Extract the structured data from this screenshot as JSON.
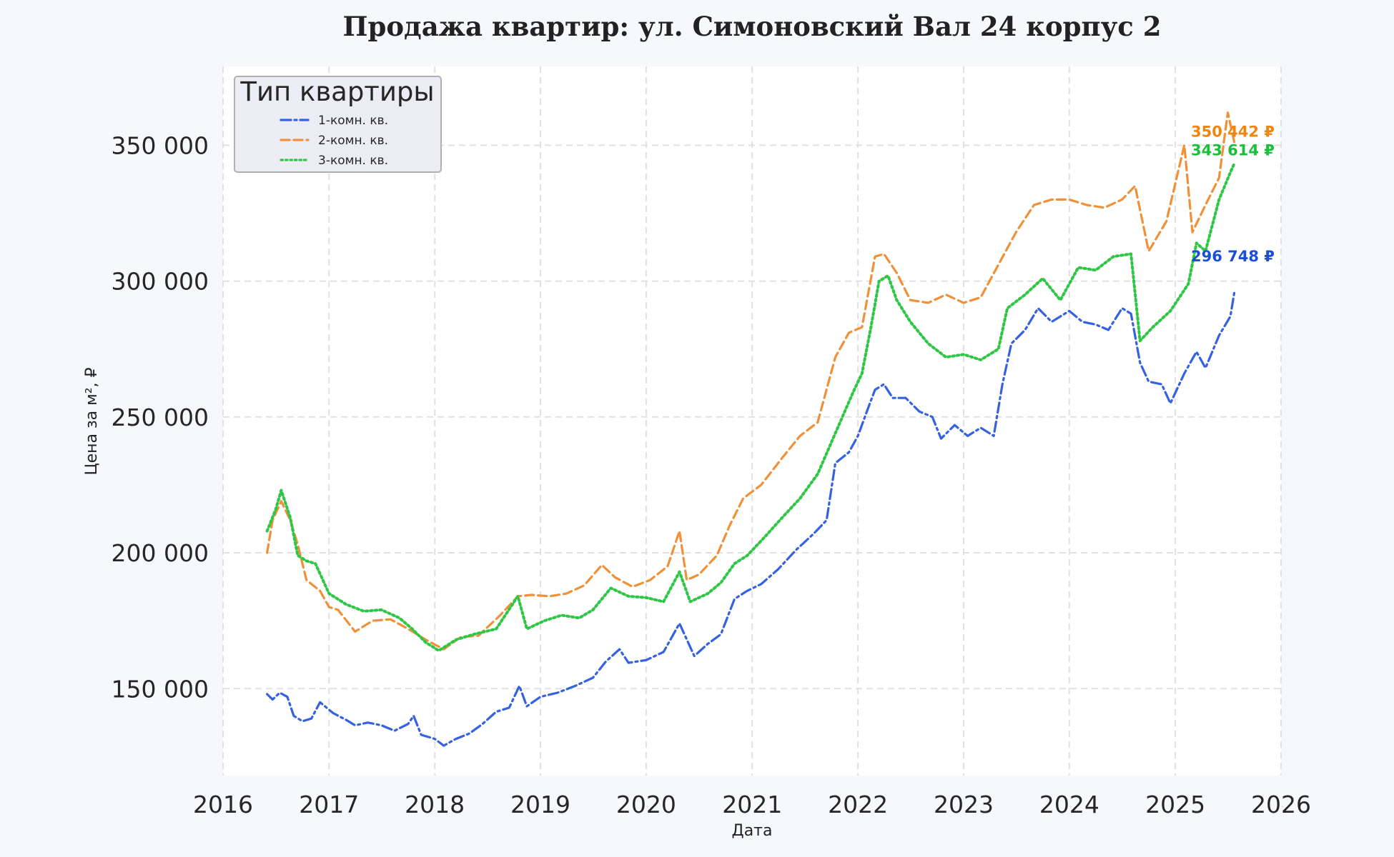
{
  "chart_data": {
    "type": "line",
    "title": "Продажа квартир: ул. Симоновский Вал 24 корпус 2",
    "xlabel": "Дата",
    "ylabel": "Цена за м², ₽",
    "xlim": [
      "2016-01-01",
      "2026-01-01"
    ],
    "ylim": [
      118000,
      379000
    ],
    "x_ticks": [
      "2016",
      "2017",
      "2018",
      "2019",
      "2020",
      "2021",
      "2022",
      "2023",
      "2024",
      "2025",
      "2026"
    ],
    "y_ticks": [
      150000,
      200000,
      250000,
      300000,
      350000
    ],
    "y_tick_labels": [
      "150 000",
      "200 000",
      "250 000",
      "300 000",
      "350 000"
    ],
    "grid": true,
    "legend": {
      "title": "Тип квартиры",
      "position": "top-left"
    },
    "series": [
      {
        "name": "1-комн. кв.",
        "color": "#3462e0",
        "style": "dash-dot",
        "end_label": "296 748 ₽",
        "end_label_color": "#1a4fd6",
        "points": [
          [
            "2016-06-01",
            148000
          ],
          [
            "2016-06-20",
            146000
          ],
          [
            "2016-07-15",
            148500
          ],
          [
            "2016-08-10",
            147000
          ],
          [
            "2016-09-01",
            140000
          ],
          [
            "2016-10-01",
            138000
          ],
          [
            "2016-11-01",
            139000
          ],
          [
            "2016-12-01",
            145000
          ],
          [
            "2017-01-15",
            141000
          ],
          [
            "2017-03-01",
            138500
          ],
          [
            "2017-04-01",
            136500
          ],
          [
            "2017-05-15",
            137500
          ],
          [
            "2017-07-01",
            136500
          ],
          [
            "2017-08-15",
            134500
          ],
          [
            "2017-10-01",
            137000
          ],
          [
            "2017-10-20",
            140000
          ],
          [
            "2017-11-15",
            133000
          ],
          [
            "2018-01-01",
            131500
          ],
          [
            "2018-02-01",
            129000
          ],
          [
            "2018-03-15",
            131500
          ],
          [
            "2018-05-01",
            133500
          ],
          [
            "2018-06-15",
            137000
          ],
          [
            "2018-08-01",
            141500
          ],
          [
            "2018-09-15",
            143000
          ],
          [
            "2018-10-20",
            151000
          ],
          [
            "2018-11-15",
            143500
          ],
          [
            "2019-01-01",
            147000
          ],
          [
            "2019-03-01",
            148500
          ],
          [
            "2019-05-01",
            151000
          ],
          [
            "2019-07-01",
            154000
          ],
          [
            "2019-08-15",
            160000
          ],
          [
            "2019-10-01",
            164500
          ],
          [
            "2019-11-01",
            159500
          ],
          [
            "2020-01-01",
            160500
          ],
          [
            "2020-03-01",
            163500
          ],
          [
            "2020-04-25",
            174000
          ],
          [
            "2020-06-15",
            162000
          ],
          [
            "2020-08-01",
            166500
          ],
          [
            "2020-09-15",
            170000
          ],
          [
            "2020-11-01",
            183000
          ],
          [
            "2020-12-15",
            186000
          ],
          [
            "2021-02-01",
            188500
          ],
          [
            "2021-04-01",
            194000
          ],
          [
            "2021-06-01",
            201000
          ],
          [
            "2021-08-01",
            207000
          ],
          [
            "2021-09-15",
            212000
          ],
          [
            "2021-10-15",
            233000
          ],
          [
            "2021-12-01",
            237000
          ],
          [
            "2022-01-01",
            243000
          ],
          [
            "2022-02-01",
            252000
          ],
          [
            "2022-03-01",
            260000
          ],
          [
            "2022-04-01",
            262000
          ],
          [
            "2022-05-01",
            257000
          ],
          [
            "2022-06-15",
            257000
          ],
          [
            "2022-08-01",
            252000
          ],
          [
            "2022-09-15",
            250000
          ],
          [
            "2022-10-15",
            242000
          ],
          [
            "2022-12-01",
            247000
          ],
          [
            "2023-01-15",
            243000
          ],
          [
            "2023-03-01",
            246000
          ],
          [
            "2023-04-15",
            243000
          ],
          [
            "2023-05-15",
            262000
          ],
          [
            "2023-06-15",
            277000
          ],
          [
            "2023-08-01",
            282000
          ],
          [
            "2023-09-15",
            290000
          ],
          [
            "2023-11-01",
            285000
          ],
          [
            "2024-01-01",
            289000
          ],
          [
            "2024-02-15",
            285000
          ],
          [
            "2024-04-01",
            284000
          ],
          [
            "2024-05-15",
            282000
          ],
          [
            "2024-07-01",
            290000
          ],
          [
            "2024-08-01",
            288000
          ],
          [
            "2024-09-01",
            270000
          ],
          [
            "2024-10-01",
            263000
          ],
          [
            "2024-11-15",
            262000
          ],
          [
            "2024-12-15",
            255000
          ],
          [
            "2025-02-01",
            266000
          ],
          [
            "2025-03-15",
            274000
          ],
          [
            "2025-04-15",
            268000
          ],
          [
            "2025-06-01",
            280000
          ],
          [
            "2025-07-10",
            287000
          ],
          [
            "2025-07-25",
            296748
          ]
        ]
      },
      {
        "name": "2-комн. кв.",
        "color": "#f0913a",
        "style": "dashed",
        "end_label": "350 442 ₽",
        "end_label_color": "#f0860f",
        "points": [
          [
            "2016-06-01",
            200000
          ],
          [
            "2016-06-20",
            212000
          ],
          [
            "2016-07-20",
            219000
          ],
          [
            "2016-08-20",
            212000
          ],
          [
            "2016-09-15",
            203000
          ],
          [
            "2016-10-15",
            190000
          ],
          [
            "2016-12-01",
            186000
          ],
          [
            "2017-01-01",
            180000
          ],
          [
            "2017-02-01",
            179000
          ],
          [
            "2017-04-01",
            171000
          ],
          [
            "2017-06-01",
            175000
          ],
          [
            "2017-08-01",
            175500
          ],
          [
            "2017-10-01",
            172000
          ],
          [
            "2017-12-01",
            168000
          ],
          [
            "2018-02-01",
            164500
          ],
          [
            "2018-04-01",
            169000
          ],
          [
            "2018-06-01",
            169500
          ],
          [
            "2018-08-15",
            177000
          ],
          [
            "2018-10-15",
            184000
          ],
          [
            "2018-12-01",
            184500
          ],
          [
            "2019-02-01",
            184000
          ],
          [
            "2019-04-01",
            185000
          ],
          [
            "2019-06-01",
            188000
          ],
          [
            "2019-08-01",
            195500
          ],
          [
            "2019-09-15",
            191000
          ],
          [
            "2019-11-15",
            187500
          ],
          [
            "2020-01-15",
            190000
          ],
          [
            "2020-03-15",
            195000
          ],
          [
            "2020-04-25",
            208000
          ],
          [
            "2020-05-20",
            190000
          ],
          [
            "2020-07-01",
            192000
          ],
          [
            "2020-09-01",
            199000
          ],
          [
            "2020-10-15",
            210000
          ],
          [
            "2020-12-01",
            220000
          ],
          [
            "2021-02-01",
            225000
          ],
          [
            "2021-04-15",
            235000
          ],
          [
            "2021-06-15",
            243000
          ],
          [
            "2021-08-15",
            248000
          ],
          [
            "2021-10-15",
            272000
          ],
          [
            "2021-12-01",
            281000
          ],
          [
            "2022-01-15",
            283000
          ],
          [
            "2022-03-01",
            309000
          ],
          [
            "2022-04-01",
            310000
          ],
          [
            "2022-05-15",
            303000
          ],
          [
            "2022-07-01",
            293000
          ],
          [
            "2022-09-01",
            292000
          ],
          [
            "2022-11-01",
            295000
          ],
          [
            "2023-01-01",
            292000
          ],
          [
            "2023-03-01",
            294000
          ],
          [
            "2023-05-01",
            306000
          ],
          [
            "2023-07-01",
            318000
          ],
          [
            "2023-09-01",
            328000
          ],
          [
            "2023-11-01",
            330000
          ],
          [
            "2024-01-01",
            330000
          ],
          [
            "2024-03-01",
            328000
          ],
          [
            "2024-05-01",
            327000
          ],
          [
            "2024-07-01",
            330000
          ],
          [
            "2024-08-15",
            335000
          ],
          [
            "2024-10-01",
            311000
          ],
          [
            "2024-12-01",
            322000
          ],
          [
            "2025-02-01",
            350000
          ],
          [
            "2025-03-01",
            318000
          ],
          [
            "2025-04-15",
            328000
          ],
          [
            "2025-06-01",
            338000
          ],
          [
            "2025-07-01",
            362000
          ],
          [
            "2025-07-25",
            350442
          ]
        ]
      },
      {
        "name": "3-комн. кв.",
        "color": "#2ec645",
        "style": "dotted",
        "end_label": "343 614 ₽",
        "end_label_color": "#1bbf3c",
        "points": [
          [
            "2016-06-01",
            208000
          ],
          [
            "2016-07-01",
            216000
          ],
          [
            "2016-07-20",
            223000
          ],
          [
            "2016-08-20",
            213000
          ],
          [
            "2016-09-15",
            199000
          ],
          [
            "2016-10-15",
            197000
          ],
          [
            "2016-11-15",
            196000
          ],
          [
            "2017-01-01",
            185000
          ],
          [
            "2017-03-01",
            181000
          ],
          [
            "2017-05-01",
            178500
          ],
          [
            "2017-07-01",
            179000
          ],
          [
            "2017-09-01",
            176000
          ],
          [
            "2017-10-15",
            172000
          ],
          [
            "2017-12-01",
            167000
          ],
          [
            "2018-01-15",
            164000
          ],
          [
            "2018-03-15",
            168000
          ],
          [
            "2018-05-15",
            170000
          ],
          [
            "2018-08-01",
            172000
          ],
          [
            "2018-10-15",
            184000
          ],
          [
            "2018-11-15",
            172000
          ],
          [
            "2019-01-15",
            175000
          ],
          [
            "2019-03-15",
            177000
          ],
          [
            "2019-05-15",
            176000
          ],
          [
            "2019-07-01",
            179000
          ],
          [
            "2019-09-01",
            187000
          ],
          [
            "2019-11-01",
            184000
          ],
          [
            "2020-01-01",
            183500
          ],
          [
            "2020-03-01",
            182000
          ],
          [
            "2020-04-25",
            193000
          ],
          [
            "2020-06-01",
            182000
          ],
          [
            "2020-08-01",
            185000
          ],
          [
            "2020-09-15",
            189000
          ],
          [
            "2020-11-01",
            196000
          ],
          [
            "2020-12-15",
            199000
          ],
          [
            "2021-02-15",
            206000
          ],
          [
            "2021-04-15",
            213000
          ],
          [
            "2021-06-15",
            220000
          ],
          [
            "2021-08-15",
            229000
          ],
          [
            "2021-10-15",
            244000
          ],
          [
            "2021-12-15",
            259000
          ],
          [
            "2022-01-15",
            266000
          ],
          [
            "2022-02-15",
            283000
          ],
          [
            "2022-03-15",
            300000
          ],
          [
            "2022-04-15",
            302000
          ],
          [
            "2022-05-15",
            293000
          ],
          [
            "2022-07-01",
            285000
          ],
          [
            "2022-09-01",
            277000
          ],
          [
            "2022-11-01",
            272000
          ],
          [
            "2023-01-01",
            273000
          ],
          [
            "2023-03-01",
            271000
          ],
          [
            "2023-05-01",
            275000
          ],
          [
            "2023-06-01",
            290000
          ],
          [
            "2023-08-01",
            295000
          ],
          [
            "2023-10-01",
            301000
          ],
          [
            "2023-12-01",
            293000
          ],
          [
            "2024-02-01",
            305000
          ],
          [
            "2024-04-01",
            304000
          ],
          [
            "2024-06-01",
            309000
          ],
          [
            "2024-08-01",
            310000
          ],
          [
            "2024-09-01",
            278000
          ],
          [
            "2024-10-15",
            283000
          ],
          [
            "2024-12-15",
            289000
          ],
          [
            "2025-02-15",
            299000
          ],
          [
            "2025-03-15",
            314000
          ],
          [
            "2025-04-15",
            311000
          ],
          [
            "2025-06-01",
            330000
          ],
          [
            "2025-07-10",
            340000
          ],
          [
            "2025-07-25",
            343614
          ]
        ]
      }
    ]
  }
}
